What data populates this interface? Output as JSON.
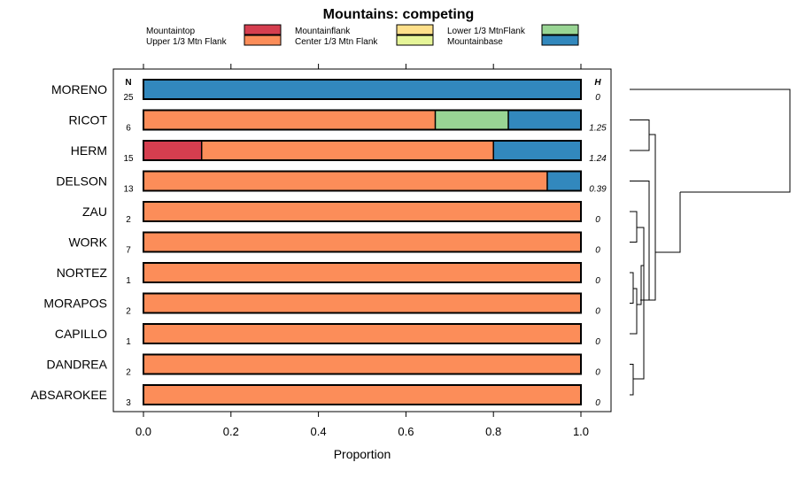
{
  "chart_data": {
    "type": "bar",
    "orientation": "horizontal",
    "stacked": true,
    "title": "Mountains: competing",
    "xlabel": "Proportion",
    "ylabel": "",
    "xlim": [
      0,
      1
    ],
    "x_ticks": [
      "0.0",
      "0.2",
      "0.4",
      "0.6",
      "0.8",
      "1.0"
    ],
    "n_header": "N",
    "h_header": "H",
    "categories": [
      "MORENO",
      "RICOT",
      "HERM",
      "DELSON",
      "ZAU",
      "WORK",
      "NORTEZ",
      "MORAPOS",
      "CAPILLO",
      "DANDREA",
      "ABSAROKEE"
    ],
    "n": [
      "25",
      "6",
      "15",
      "13",
      "2",
      "7",
      "1",
      "2",
      "1",
      "2",
      "3"
    ],
    "h": [
      "0",
      "1.25",
      "1.24",
      "0.39",
      "0",
      "0",
      "0",
      "0",
      "0",
      "0",
      "0"
    ],
    "series": [
      {
        "name": "Mountaintop",
        "color": "#D53E4F",
        "values": [
          0,
          0,
          0.133,
          0,
          0,
          0,
          0,
          0,
          0,
          0,
          0
        ]
      },
      {
        "name": "Upper 1/3 Mtn Flank",
        "color": "#FC8D59",
        "values": [
          0,
          0.667,
          0.667,
          0.923,
          1,
          1,
          1,
          1,
          1,
          1,
          1
        ]
      },
      {
        "name": "Mountainflank",
        "color": "#FEE08B",
        "values": [
          0,
          0,
          0,
          0,
          0,
          0,
          0,
          0,
          0,
          0,
          0
        ]
      },
      {
        "name": "Center 1/3 Mtn Flank",
        "color": "#E6F598",
        "values": [
          0,
          0,
          0,
          0,
          0,
          0,
          0,
          0,
          0,
          0,
          0
        ]
      },
      {
        "name": "Lower 1/3 MtnFlank",
        "color": "#99D594",
        "values": [
          0,
          0.167,
          0,
          0,
          0,
          0,
          0,
          0,
          0,
          0,
          0
        ]
      },
      {
        "name": "Mountainbase",
        "color": "#3288BD",
        "values": [
          1,
          0.166,
          0.2,
          0.077,
          0,
          0,
          0,
          0,
          0,
          0,
          0
        ]
      }
    ],
    "legend_position": "top",
    "dendrogram": "right"
  }
}
